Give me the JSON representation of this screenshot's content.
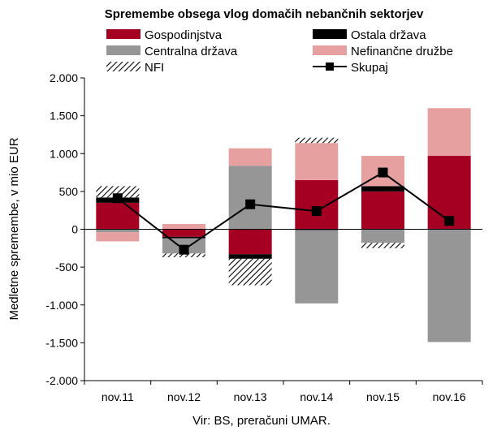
{
  "chart_data": {
    "type": "bar",
    "stacked": true,
    "title": "Spremembe obsega vlog domačih nebančnih sektorjev",
    "ylabel": "Medletne spremembe, v mio EUR",
    "xlabel": "",
    "source": "Vir: BS, preračuni UMAR.",
    "ylim": [
      -2000,
      2000
    ],
    "yticks": [
      2000,
      1500,
      1000,
      500,
      0,
      -500,
      -1000,
      -1500,
      -2000
    ],
    "ytick_labels": [
      "2.000",
      "1.500",
      "1.000",
      "500",
      "0",
      "-500",
      "-1.000",
      "-1.500",
      "-2.000"
    ],
    "categories": [
      "nov.11",
      "nov.12",
      "nov.13",
      "nov.14",
      "nov.15",
      "nov.16"
    ],
    "grid": false,
    "legend_position": "top",
    "series": [
      {
        "name": "Gospodinjstva",
        "color": "#a50021",
        "pattern": "solid",
        "values": [
          350,
          -100,
          -330,
          650,
          500,
          970
        ]
      },
      {
        "name": "Ostala država",
        "color": "#000000",
        "pattern": "solid",
        "values": [
          70,
          -20,
          -60,
          -10,
          70,
          0
        ]
      },
      {
        "name": "Centralna država",
        "color": "#969696",
        "pattern": "solid",
        "values": [
          -40,
          -200,
          840,
          -970,
          -180,
          -1490
        ]
      },
      {
        "name": "Nefinančne družbe",
        "color": "#e6a0a0",
        "pattern": "solid",
        "values": [
          -120,
          70,
          230,
          490,
          400,
          630
        ]
      },
      {
        "name": "NFI",
        "color": "#000000",
        "pattern": "hatch",
        "values": [
          150,
          -50,
          -350,
          70,
          -70,
          0
        ]
      }
    ],
    "line": {
      "name": "Skupaj",
      "color": "#000000",
      "values": [
        410,
        -270,
        330,
        240,
        750,
        110
      ]
    }
  }
}
